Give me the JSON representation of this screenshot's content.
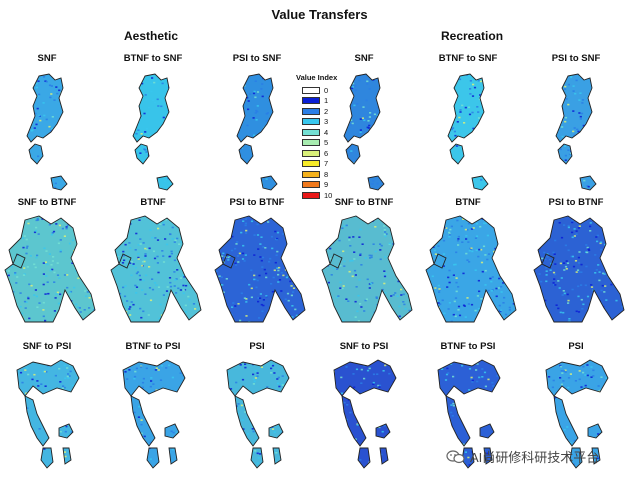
{
  "figure": {
    "title": "Value Transfers",
    "groups": [
      {
        "label": "Aesthetic"
      },
      {
        "label": "Recreation"
      }
    ],
    "panel_labels": [
      [
        "SNF",
        "BTNF to SNF",
        "PSI to SNF",
        "SNF",
        "BTNF to SNF",
        "PSI to SNF"
      ],
      [
        "SNF to BTNF",
        "BTNF",
        "PSI to BTNF",
        "SNF to BTNF",
        "BTNF",
        "PSI to BTNF"
      ],
      [
        "SNF to PSI",
        "BTNF to PSI",
        "PSI",
        "SNF to PSI",
        "BTNF to PSI",
        "PSI"
      ]
    ],
    "panel_fill": [
      [
        "#3aa8e6",
        "#38c4ea",
        "#2f8fe0",
        "#2f86de",
        "#3cc6ea",
        "#3aa0e4"
      ],
      [
        "#5cc6cf",
        "#52c2d8",
        "#2c64d6",
        "#58bcd0",
        "#3aa6e6",
        "#2c62d4"
      ],
      [
        "#44b6e2",
        "#3aa4e6",
        "#48b8dc",
        "#2a52d0",
        "#2c60d6",
        "#3aa4e6"
      ]
    ]
  },
  "legend": {
    "title": "Value Index",
    "items": [
      {
        "label": "0",
        "color": "#ffffff"
      },
      {
        "label": "1",
        "color": "#0a1fd6"
      },
      {
        "label": "2",
        "color": "#2a7ee6"
      },
      {
        "label": "3",
        "color": "#38c7ee"
      },
      {
        "label": "4",
        "color": "#74e0d4"
      },
      {
        "label": "5",
        "color": "#a8ecb0"
      },
      {
        "label": "6",
        "color": "#d9f07a"
      },
      {
        "label": "7",
        "color": "#f7ec2a"
      },
      {
        "label": "8",
        "color": "#f5b21e"
      },
      {
        "label": "9",
        "color": "#f0791c"
      },
      {
        "label": "10",
        "color": "#e81818"
      }
    ]
  },
  "watermark": {
    "text": "AI尚研修科研技术平台",
    "icon": "wechat-icon"
  }
}
